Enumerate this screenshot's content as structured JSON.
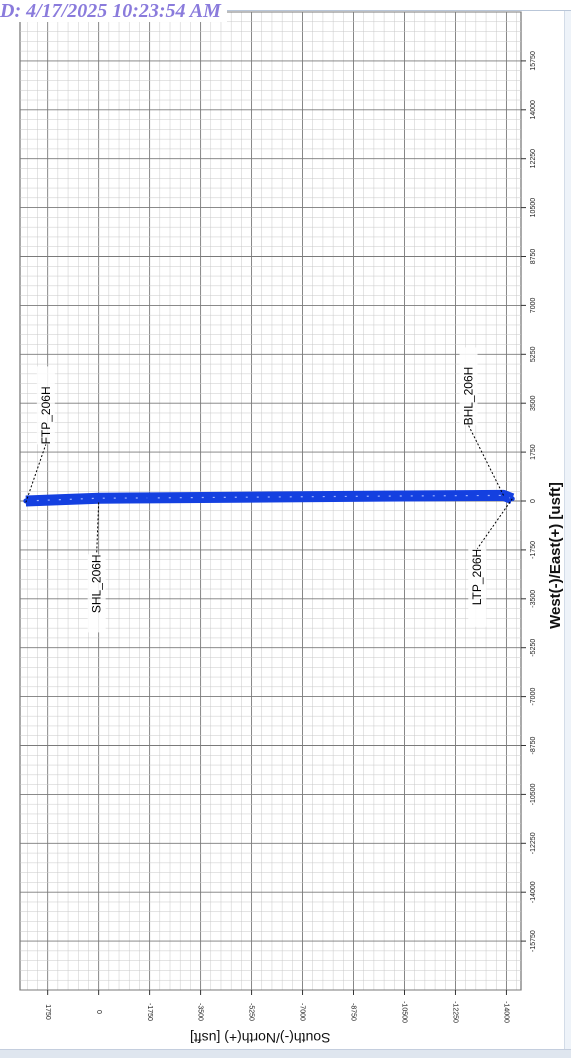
{
  "header": {
    "stamp": "D: 4/17/2025 10:23:54 AM"
  },
  "colors": {
    "well_path": "#1440e0",
    "grid_minor": "#c9c9c9",
    "grid_major": "#7a7a7a",
    "stamp": "#8a7bdc"
  },
  "chart_data": {
    "type": "line",
    "title": "",
    "xlabel": "West(-)/East(+) [usft]",
    "ylabel": "South(-)/North(+) [usft]",
    "x_ticks": [
      "15750",
      "14000",
      "12250",
      "10500",
      "8750",
      "7000",
      "5250",
      "3500",
      "1750",
      "0",
      "-1750",
      "-3500",
      "-5250",
      "-7000",
      "-8750",
      "-10500",
      "-12250",
      "-14000",
      "-15750"
    ],
    "y_ticks": [
      "1750",
      "0",
      "-1750",
      "-3500",
      "-5250",
      "-7000",
      "-8750",
      "-10500",
      "-12250",
      "-14000"
    ],
    "xlim": [
      -17500,
      17500
    ],
    "ylim": [
      -14500,
      2700
    ],
    "grid": true,
    "series": [
      {
        "name": "",
        "x": [
          0,
          100,
          110,
          180,
          200,
          80
        ],
        "y": [
          2500,
          0,
          -1750,
          -10500,
          -13900,
          -14200
        ]
      }
    ],
    "annotations": [
      {
        "text": "FTP_206H",
        "x": -50,
        "y": 2500
      },
      {
        "text": "SHL_206H",
        "x": -50,
        "y": 0
      },
      {
        "text": "LTP_206H",
        "x": 80,
        "y": -14200
      },
      {
        "text": "BHL_206H",
        "x": 200,
        "y": -13900
      }
    ]
  }
}
